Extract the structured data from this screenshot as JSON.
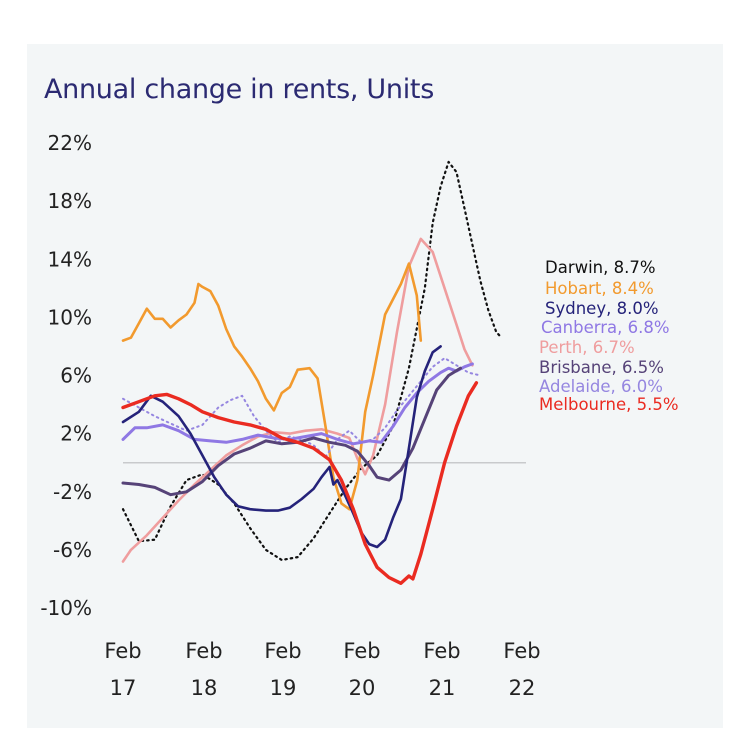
{
  "chart_data": {
    "type": "line",
    "title": "Annual change in rents, Units",
    "y_ticks": [
      "22%",
      "18%",
      "14%",
      "10%",
      "6%",
      "2%",
      "-2%",
      "-6%",
      "-10%"
    ],
    "ylim": [
      -10,
      22
    ],
    "x_ticks": [
      {
        "month": "Feb",
        "year": "17"
      },
      {
        "month": "Feb",
        "year": "18"
      },
      {
        "month": "Feb",
        "year": "19"
      },
      {
        "month": "Feb",
        "year": "20"
      },
      {
        "month": "Feb",
        "year": "21"
      },
      {
        "month": "Feb",
        "year": "22"
      }
    ],
    "x_range": [
      2017.0,
      2022.1
    ],
    "zero_line": true,
    "series": [
      {
        "name": "Darwin",
        "label": "Darwin, 8.7%",
        "color": "#111111",
        "dotted": true,
        "width": 2.2,
        "points": [
          [
            2017.0,
            -3.2
          ],
          [
            2017.2,
            -5.4
          ],
          [
            2017.4,
            -5.3
          ],
          [
            2017.6,
            -3.0
          ],
          [
            2017.8,
            -1.2
          ],
          [
            2018.0,
            -0.8
          ],
          [
            2018.2,
            -1.5
          ],
          [
            2018.4,
            -2.8
          ],
          [
            2018.6,
            -4.5
          ],
          [
            2018.8,
            -6.0
          ],
          [
            2019.0,
            -6.7
          ],
          [
            2019.2,
            -6.5
          ],
          [
            2019.4,
            -5.2
          ],
          [
            2019.6,
            -3.5
          ],
          [
            2019.8,
            -1.8
          ],
          [
            2020.0,
            -0.4
          ],
          [
            2020.2,
            0.5
          ],
          [
            2020.4,
            2.5
          ],
          [
            2020.6,
            6.5
          ],
          [
            2020.8,
            12.0
          ],
          [
            2020.9,
            16.5
          ],
          [
            2021.0,
            19.0
          ],
          [
            2021.1,
            20.7
          ],
          [
            2021.2,
            20.0
          ],
          [
            2021.3,
            17.5
          ],
          [
            2021.4,
            15.0
          ],
          [
            2021.5,
            12.5
          ],
          [
            2021.6,
            10.5
          ],
          [
            2021.7,
            9.0
          ],
          [
            2021.75,
            8.7
          ]
        ]
      },
      {
        "name": "Hobart",
        "label": "Hobart, 8.4%",
        "color": "#f29a2e",
        "width": 2.6,
        "points": [
          [
            2017.0,
            8.4
          ],
          [
            2017.1,
            8.6
          ],
          [
            2017.2,
            9.6
          ],
          [
            2017.3,
            10.6
          ],
          [
            2017.4,
            9.9
          ],
          [
            2017.5,
            9.9
          ],
          [
            2017.6,
            9.3
          ],
          [
            2017.7,
            9.8
          ],
          [
            2017.8,
            10.2
          ],
          [
            2017.9,
            11.0
          ],
          [
            2017.95,
            12.3
          ],
          [
            2018.0,
            12.1
          ],
          [
            2018.1,
            11.8
          ],
          [
            2018.2,
            10.8
          ],
          [
            2018.3,
            9.2
          ],
          [
            2018.4,
            8.0
          ],
          [
            2018.5,
            7.3
          ],
          [
            2018.6,
            6.5
          ],
          [
            2018.7,
            5.6
          ],
          [
            2018.8,
            4.4
          ],
          [
            2018.9,
            3.6
          ],
          [
            2019.0,
            4.8
          ],
          [
            2019.1,
            5.2
          ],
          [
            2019.2,
            6.4
          ],
          [
            2019.35,
            6.5
          ],
          [
            2019.45,
            5.8
          ],
          [
            2019.55,
            2.5
          ],
          [
            2019.65,
            -1.0
          ],
          [
            2019.75,
            -2.8
          ],
          [
            2019.85,
            -3.2
          ],
          [
            2019.95,
            -1.2
          ],
          [
            2020.05,
            3.5
          ],
          [
            2020.15,
            6.0
          ],
          [
            2020.3,
            10.2
          ],
          [
            2020.5,
            12.3
          ],
          [
            2020.6,
            13.7
          ],
          [
            2020.7,
            11.5
          ],
          [
            2020.75,
            8.4
          ]
        ]
      },
      {
        "name": "Sydney",
        "label": "Sydney, 8.0%",
        "color": "#25237a",
        "width": 2.6,
        "points": [
          [
            2017.0,
            2.8
          ],
          [
            2017.2,
            3.5
          ],
          [
            2017.35,
            4.6
          ],
          [
            2017.5,
            4.2
          ],
          [
            2017.7,
            3.2
          ],
          [
            2017.85,
            2.0
          ],
          [
            2018.0,
            0.5
          ],
          [
            2018.15,
            -1.0
          ],
          [
            2018.3,
            -2.2
          ],
          [
            2018.45,
            -3.0
          ],
          [
            2018.6,
            -3.2
          ],
          [
            2018.8,
            -3.3
          ],
          [
            2018.95,
            -3.3
          ],
          [
            2019.1,
            -3.1
          ],
          [
            2019.25,
            -2.5
          ],
          [
            2019.4,
            -1.8
          ],
          [
            2019.5,
            -1.0
          ],
          [
            2019.6,
            -0.3
          ],
          [
            2019.65,
            -1.5
          ],
          [
            2019.7,
            -1.2
          ],
          [
            2019.8,
            -2.3
          ],
          [
            2019.9,
            -3.5
          ],
          [
            2020.0,
            -4.8
          ],
          [
            2020.1,
            -5.6
          ],
          [
            2020.2,
            -5.8
          ],
          [
            2020.3,
            -5.3
          ],
          [
            2020.4,
            -3.8
          ],
          [
            2020.5,
            -2.5
          ],
          [
            2020.6,
            1.0
          ],
          [
            2020.7,
            4.5
          ],
          [
            2020.8,
            6.3
          ],
          [
            2020.9,
            7.6
          ],
          [
            2021.0,
            8.0
          ]
        ]
      },
      {
        "name": "Canberra",
        "label": "Canberra, 6.8%",
        "color": "#8f78e4",
        "width": 3.0,
        "points": [
          [
            2017.0,
            1.6
          ],
          [
            2017.15,
            2.4
          ],
          [
            2017.3,
            2.4
          ],
          [
            2017.5,
            2.6
          ],
          [
            2017.7,
            2.2
          ],
          [
            2017.9,
            1.6
          ],
          [
            2018.1,
            1.5
          ],
          [
            2018.3,
            1.4
          ],
          [
            2018.5,
            1.6
          ],
          [
            2018.7,
            1.9
          ],
          [
            2018.9,
            1.7
          ],
          [
            2019.1,
            1.6
          ],
          [
            2019.3,
            1.8
          ],
          [
            2019.5,
            2.0
          ],
          [
            2019.7,
            1.6
          ],
          [
            2019.9,
            1.3
          ],
          [
            2020.1,
            1.5
          ],
          [
            2020.25,
            1.4
          ],
          [
            2020.4,
            2.5
          ],
          [
            2020.55,
            3.8
          ],
          [
            2020.7,
            4.8
          ],
          [
            2020.85,
            5.6
          ],
          [
            2021.0,
            6.2
          ],
          [
            2021.1,
            6.5
          ],
          [
            2021.2,
            6.3
          ],
          [
            2021.3,
            6.6
          ],
          [
            2021.4,
            6.8
          ]
        ]
      },
      {
        "name": "Perth",
        "label": "Perth, 6.7%",
        "color": "#ef9d9e",
        "width": 2.6,
        "points": [
          [
            2017.0,
            -6.8
          ],
          [
            2017.1,
            -6.0
          ],
          [
            2017.3,
            -5.0
          ],
          [
            2017.5,
            -3.8
          ],
          [
            2017.7,
            -2.6
          ],
          [
            2017.9,
            -1.5
          ],
          [
            2018.1,
            -0.5
          ],
          [
            2018.3,
            0.5
          ],
          [
            2018.5,
            1.2
          ],
          [
            2018.7,
            1.8
          ],
          [
            2018.9,
            2.1
          ],
          [
            2019.1,
            2.0
          ],
          [
            2019.3,
            2.2
          ],
          [
            2019.5,
            2.3
          ],
          [
            2019.7,
            2.0
          ],
          [
            2019.85,
            1.7
          ],
          [
            2019.95,
            0.3
          ],
          [
            2020.05,
            -0.8
          ],
          [
            2020.15,
            0.5
          ],
          [
            2020.3,
            4.0
          ],
          [
            2020.45,
            9.0
          ],
          [
            2020.6,
            13.5
          ],
          [
            2020.75,
            15.4
          ],
          [
            2020.9,
            14.5
          ],
          [
            2021.05,
            12.0
          ],
          [
            2021.2,
            9.5
          ],
          [
            2021.3,
            7.8
          ],
          [
            2021.4,
            6.7
          ]
        ]
      },
      {
        "name": "Brisbane",
        "label": "Brisbane, 6.5%",
        "color": "#564378",
        "width": 3.0,
        "points": [
          [
            2017.0,
            -1.4
          ],
          [
            2017.2,
            -1.5
          ],
          [
            2017.4,
            -1.7
          ],
          [
            2017.6,
            -2.2
          ],
          [
            2017.8,
            -2.0
          ],
          [
            2018.0,
            -1.3
          ],
          [
            2018.2,
            -0.2
          ],
          [
            2018.4,
            0.6
          ],
          [
            2018.6,
            1.0
          ],
          [
            2018.8,
            1.5
          ],
          [
            2019.0,
            1.3
          ],
          [
            2019.2,
            1.4
          ],
          [
            2019.4,
            1.7
          ],
          [
            2019.6,
            1.4
          ],
          [
            2019.8,
            1.2
          ],
          [
            2019.95,
            0.8
          ],
          [
            2020.1,
            -0.2
          ],
          [
            2020.2,
            -1.0
          ],
          [
            2020.35,
            -1.2
          ],
          [
            2020.5,
            -0.5
          ],
          [
            2020.65,
            1.0
          ],
          [
            2020.8,
            3.0
          ],
          [
            2020.95,
            5.0
          ],
          [
            2021.1,
            6.0
          ],
          [
            2021.25,
            6.5
          ]
        ]
      },
      {
        "name": "Adelaide",
        "label": "Adelaide, 6.0%",
        "color": "#9586e0",
        "dotted": true,
        "width": 2.0,
        "points": [
          [
            2017.0,
            4.4
          ],
          [
            2017.2,
            3.8
          ],
          [
            2017.4,
            3.2
          ],
          [
            2017.6,
            2.7
          ],
          [
            2017.8,
            2.2
          ],
          [
            2018.0,
            2.6
          ],
          [
            2018.2,
            3.8
          ],
          [
            2018.35,
            4.3
          ],
          [
            2018.5,
            4.6
          ],
          [
            2018.65,
            3.2
          ],
          [
            2018.8,
            2.2
          ],
          [
            2018.95,
            1.4
          ],
          [
            2019.1,
            1.8
          ],
          [
            2019.25,
            1.6
          ],
          [
            2019.4,
            1.2
          ],
          [
            2019.55,
            0.4
          ],
          [
            2019.7,
            1.6
          ],
          [
            2019.85,
            2.2
          ],
          [
            2020.0,
            1.4
          ],
          [
            2020.15,
            1.6
          ],
          [
            2020.3,
            2.4
          ],
          [
            2020.45,
            3.6
          ],
          [
            2020.6,
            4.6
          ],
          [
            2020.75,
            5.6
          ],
          [
            2020.9,
            6.6
          ],
          [
            2021.05,
            7.2
          ],
          [
            2021.2,
            6.7
          ],
          [
            2021.35,
            6.2
          ],
          [
            2021.5,
            6.0
          ]
        ]
      },
      {
        "name": "Melbourne",
        "label": "Melbourne, 5.5%",
        "color": "#ea2b21",
        "width": 3.4,
        "points": [
          [
            2017.0,
            3.8
          ],
          [
            2017.2,
            4.2
          ],
          [
            2017.4,
            4.6
          ],
          [
            2017.55,
            4.7
          ],
          [
            2017.7,
            4.4
          ],
          [
            2017.85,
            4.0
          ],
          [
            2018.0,
            3.5
          ],
          [
            2018.2,
            3.1
          ],
          [
            2018.4,
            2.8
          ],
          [
            2018.6,
            2.6
          ],
          [
            2018.8,
            2.3
          ],
          [
            2019.0,
            1.7
          ],
          [
            2019.2,
            1.4
          ],
          [
            2019.4,
            1.0
          ],
          [
            2019.6,
            0.2
          ],
          [
            2019.75,
            -1.2
          ],
          [
            2019.9,
            -3.2
          ],
          [
            2020.05,
            -5.6
          ],
          [
            2020.2,
            -7.2
          ],
          [
            2020.35,
            -7.9
          ],
          [
            2020.5,
            -8.3
          ],
          [
            2020.6,
            -7.8
          ],
          [
            2020.65,
            -8.0
          ],
          [
            2020.75,
            -6.3
          ],
          [
            2020.9,
            -3.2
          ],
          [
            2021.05,
            0.0
          ],
          [
            2021.2,
            2.5
          ],
          [
            2021.35,
            4.6
          ],
          [
            2021.45,
            5.5
          ]
        ]
      }
    ]
  }
}
